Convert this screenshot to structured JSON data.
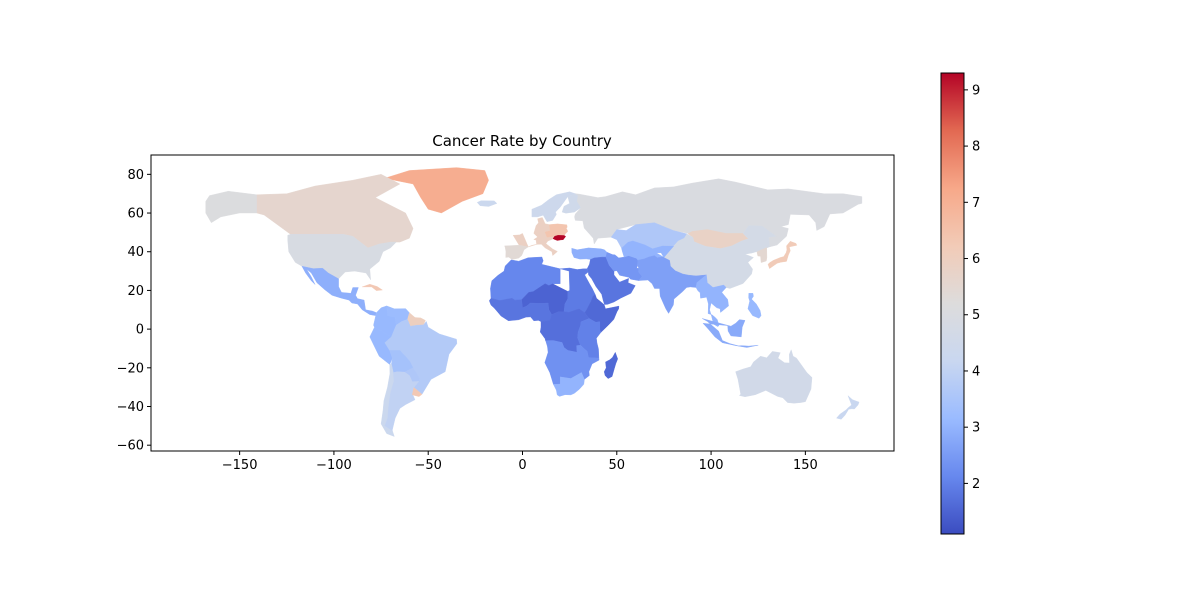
{
  "title": "Cancer Rate by Country",
  "x_ticks": [
    -150,
    -100,
    -50,
    0,
    50,
    100,
    150
  ],
  "y_ticks": [
    80,
    60,
    40,
    20,
    0,
    -20,
    -40,
    -60
  ],
  "xlim": [
    -197,
    197
  ],
  "ylim": [
    -63,
    90
  ],
  "colorbar": {
    "colormap": "coolwarm",
    "min": 1.1,
    "max": 9.3,
    "ticks": [
      2,
      3,
      4,
      5,
      6,
      7,
      8,
      9
    ],
    "stops": [
      "#3b4cc0",
      "#6788ee",
      "#9abbff",
      "#c9d7f0",
      "#dddcdc",
      "#f2cbb7",
      "#f7a889",
      "#e26952",
      "#b40426"
    ]
  },
  "chart_data": {
    "type": "choropleth",
    "title": "Cancer Rate by Country",
    "value_range": [
      1.1,
      9.3
    ],
    "regions": [
      {
        "name": "Greenland",
        "value": 7.1
      },
      {
        "name": "Canada",
        "value": 5.6
      },
      {
        "name": "Alaska",
        "value": 5.1
      },
      {
        "name": "USA",
        "value": 4.9
      },
      {
        "name": "Mexico",
        "value": 2.9
      },
      {
        "name": "Central America",
        "value": 2.9
      },
      {
        "name": "Cuba",
        "value": 6.3
      },
      {
        "name": "Colombia",
        "value": 3.1
      },
      {
        "name": "Venezuela",
        "value": 3.2
      },
      {
        "name": "Guianas",
        "value": 6.0
      },
      {
        "name": "Peru",
        "value": 3.1
      },
      {
        "name": "Brazil",
        "value": 3.7
      },
      {
        "name": "Bolivia",
        "value": 3.4
      },
      {
        "name": "Paraguay",
        "value": 3.6
      },
      {
        "name": "Chile",
        "value": 4.3
      },
      {
        "name": "Argentina",
        "value": 4.0
      },
      {
        "name": "Uruguay",
        "value": 6.3
      },
      {
        "name": "Iceland",
        "value": 4.3
      },
      {
        "name": "Scandinavia",
        "value": 4.4
      },
      {
        "name": "Finland",
        "value": 4.5
      },
      {
        "name": "Russia",
        "value": 5.0
      },
      {
        "name": "Western Europe",
        "value": 5.9
      },
      {
        "name": "Central Europe",
        "value": 6.4
      },
      {
        "name": "Hungary",
        "value": 9.3
      },
      {
        "name": "Iberia",
        "value": 5.4
      },
      {
        "name": "Turkey",
        "value": 2.9
      },
      {
        "name": "Kazakhstan",
        "value": 3.6
      },
      {
        "name": "Mongolia",
        "value": 5.8
      },
      {
        "name": "China",
        "value": 4.7
      },
      {
        "name": "Korea",
        "value": 5.5
      },
      {
        "name": "Japan",
        "value": 6.2
      },
      {
        "name": "Middle East",
        "value": 1.8
      },
      {
        "name": "Iran",
        "value": 2.4
      },
      {
        "name": "Central Asia",
        "value": 3.0
      },
      {
        "name": "India",
        "value": 2.6
      },
      {
        "name": "Southeast Asia",
        "value": 3.0
      },
      {
        "name": "Indonesia",
        "value": 2.8
      },
      {
        "name": "Philippines",
        "value": 3.1
      },
      {
        "name": "Australia",
        "value": 4.6
      },
      {
        "name": "New Zealand",
        "value": 4.2
      },
      {
        "name": "North Africa",
        "value": 2.1
      },
      {
        "name": "Sahel",
        "value": 1.5
      },
      {
        "name": "West Africa",
        "value": 1.8
      },
      {
        "name": "Egypt and Sudan",
        "value": 1.9
      },
      {
        "name": "Horn of Africa",
        "value": 1.6
      },
      {
        "name": "Central Africa",
        "value": 1.7
      },
      {
        "name": "East Africa",
        "value": 2.0
      },
      {
        "name": "Southern Africa",
        "value": 2.3
      },
      {
        "name": "South Africa",
        "value": 3.0
      },
      {
        "name": "Madagascar",
        "value": 1.6
      }
    ]
  }
}
